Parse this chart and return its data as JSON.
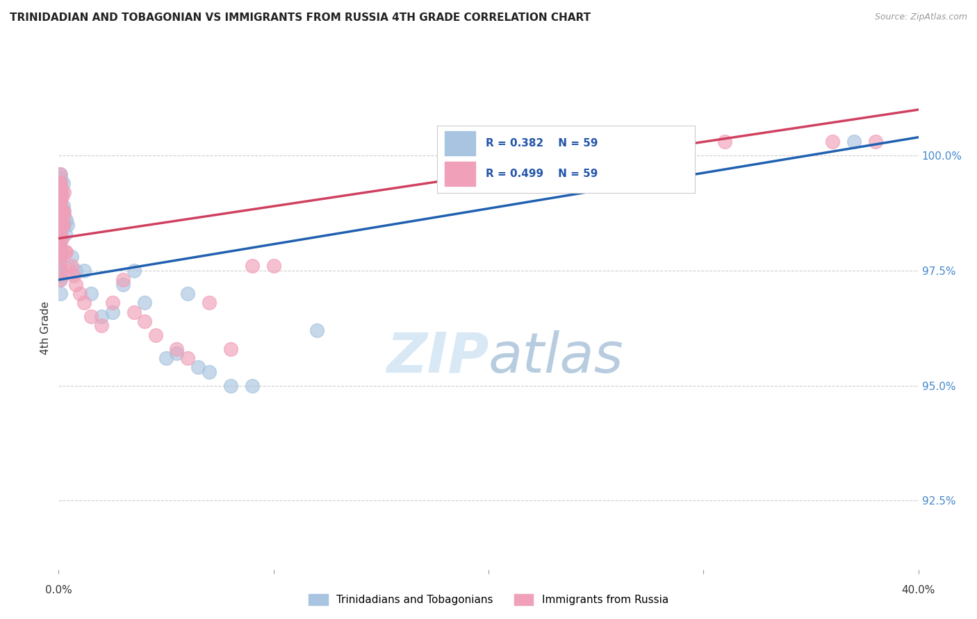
{
  "title": "TRINIDADIAN AND TOBAGONIAN VS IMMIGRANTS FROM RUSSIA 4TH GRADE CORRELATION CHART",
  "source": "Source: ZipAtlas.com",
  "ylabel": "4th Grade",
  "yticks": [
    92.5,
    95.0,
    97.5,
    100.0
  ],
  "ytick_labels": [
    "92.5%",
    "95.0%",
    "97.5%",
    "100.0%"
  ],
  "xlim": [
    0.0,
    40.0
  ],
  "ylim": [
    91.0,
    101.5
  ],
  "watermark_zip": "ZIP",
  "watermark_atlas": "atlas",
  "legend_R_blue": "0.382",
  "legend_N_blue": "59",
  "legend_R_pink": "0.499",
  "legend_N_pink": "59",
  "legend_label_blue": "Trinidadians and Tobagonians",
  "legend_label_pink": "Immigrants from Russia",
  "blue_color": "#a8c4e0",
  "pink_color": "#f0a0b8",
  "blue_line_color": "#2060b0",
  "pink_line_color": "#d04060",
  "blue_scatter": [
    [
      0.05,
      99.4
    ],
    [
      0.05,
      99.3
    ],
    [
      0.05,
      99.0
    ],
    [
      0.05,
      98.8
    ],
    [
      0.05,
      98.7
    ],
    [
      0.05,
      98.6
    ],
    [
      0.05,
      98.5
    ],
    [
      0.05,
      98.3
    ],
    [
      0.05,
      98.1
    ],
    [
      0.05,
      98.0
    ],
    [
      0.05,
      97.9
    ],
    [
      0.05,
      97.8
    ],
    [
      0.05,
      97.6
    ],
    [
      0.05,
      97.5
    ],
    [
      0.05,
      97.4
    ],
    [
      0.08,
      99.6
    ],
    [
      0.08,
      99.4
    ],
    [
      0.08,
      99.2
    ],
    [
      0.1,
      99.5
    ],
    [
      0.1,
      99.3
    ],
    [
      0.1,
      98.8
    ],
    [
      0.1,
      98.6
    ],
    [
      0.1,
      98.4
    ],
    [
      0.1,
      98.2
    ],
    [
      0.1,
      98.0
    ],
    [
      0.1,
      97.8
    ],
    [
      0.1,
      97.5
    ],
    [
      0.1,
      97.3
    ],
    [
      0.1,
      97.0
    ],
    [
      0.15,
      99.2
    ],
    [
      0.15,
      98.8
    ],
    [
      0.15,
      98.5
    ],
    [
      0.2,
      99.4
    ],
    [
      0.2,
      98.9
    ],
    [
      0.2,
      98.7
    ],
    [
      0.25,
      98.8
    ],
    [
      0.25,
      98.5
    ],
    [
      0.3,
      98.3
    ],
    [
      0.35,
      98.6
    ],
    [
      0.4,
      98.5
    ],
    [
      0.6,
      97.8
    ],
    [
      0.8,
      97.5
    ],
    [
      1.2,
      97.5
    ],
    [
      1.5,
      97.0
    ],
    [
      2.0,
      96.5
    ],
    [
      2.5,
      96.6
    ],
    [
      3.0,
      97.2
    ],
    [
      3.5,
      97.5
    ],
    [
      4.0,
      96.8
    ],
    [
      5.0,
      95.6
    ],
    [
      5.5,
      95.7
    ],
    [
      6.0,
      97.0
    ],
    [
      6.5,
      95.4
    ],
    [
      7.0,
      95.3
    ],
    [
      8.0,
      95.0
    ],
    [
      9.0,
      95.0
    ],
    [
      12.0,
      96.2
    ],
    [
      22.0,
      100.3
    ],
    [
      37.0,
      100.3
    ]
  ],
  "pink_scatter": [
    [
      0.05,
      99.6
    ],
    [
      0.05,
      99.4
    ],
    [
      0.05,
      99.2
    ],
    [
      0.05,
      99.0
    ],
    [
      0.05,
      98.8
    ],
    [
      0.05,
      98.7
    ],
    [
      0.05,
      98.5
    ],
    [
      0.05,
      98.3
    ],
    [
      0.05,
      98.1
    ],
    [
      0.05,
      98.0
    ],
    [
      0.05,
      97.9
    ],
    [
      0.05,
      97.8
    ],
    [
      0.05,
      97.7
    ],
    [
      0.05,
      97.5
    ],
    [
      0.05,
      97.3
    ],
    [
      0.08,
      99.3
    ],
    [
      0.08,
      99.1
    ],
    [
      0.1,
      99.4
    ],
    [
      0.1,
      99.2
    ],
    [
      0.1,
      99.0
    ],
    [
      0.1,
      98.9
    ],
    [
      0.1,
      98.7
    ],
    [
      0.1,
      98.5
    ],
    [
      0.1,
      98.3
    ],
    [
      0.15,
      99.1
    ],
    [
      0.15,
      98.8
    ],
    [
      0.15,
      98.5
    ],
    [
      0.15,
      98.2
    ],
    [
      0.15,
      97.9
    ],
    [
      0.2,
      98.8
    ],
    [
      0.2,
      98.5
    ],
    [
      0.25,
      99.2
    ],
    [
      0.25,
      98.7
    ],
    [
      0.3,
      97.9
    ],
    [
      0.35,
      97.9
    ],
    [
      0.5,
      97.5
    ],
    [
      0.6,
      97.6
    ],
    [
      0.7,
      97.4
    ],
    [
      0.8,
      97.2
    ],
    [
      1.0,
      97.0
    ],
    [
      1.2,
      96.8
    ],
    [
      1.5,
      96.5
    ],
    [
      2.0,
      96.3
    ],
    [
      2.5,
      96.8
    ],
    [
      3.0,
      97.3
    ],
    [
      3.5,
      96.6
    ],
    [
      4.0,
      96.4
    ],
    [
      4.5,
      96.1
    ],
    [
      5.5,
      95.8
    ],
    [
      6.0,
      95.6
    ],
    [
      7.0,
      96.8
    ],
    [
      8.0,
      95.8
    ],
    [
      9.0,
      97.6
    ],
    [
      10.0,
      97.6
    ],
    [
      27.0,
      100.3
    ],
    [
      28.5,
      100.3
    ],
    [
      31.0,
      100.3
    ],
    [
      36.0,
      100.3
    ],
    [
      38.0,
      100.3
    ]
  ],
  "blue_line": {
    "x0": 0.0,
    "y0": 97.3,
    "x1": 40.0,
    "y1": 100.4
  },
  "pink_line": {
    "x0": 0.0,
    "y0": 98.2,
    "x1": 40.0,
    "y1": 101.0
  }
}
